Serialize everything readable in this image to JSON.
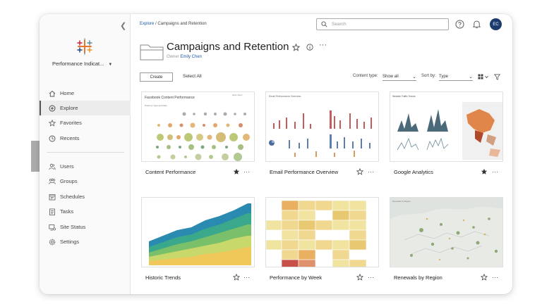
{
  "site": {
    "name": "Performance Indicat..."
  },
  "nav": [
    {
      "label": "Home",
      "icon": "home-icon"
    },
    {
      "label": "Explore",
      "icon": "explore-icon",
      "active": true
    },
    {
      "label": "Favorites",
      "icon": "star-icon"
    },
    {
      "label": "Recents",
      "icon": "clock-icon"
    },
    {
      "label": "Users",
      "icon": "users-icon"
    },
    {
      "label": "Groups",
      "icon": "groups-icon"
    },
    {
      "label": "Schedules",
      "icon": "schedules-icon"
    },
    {
      "label": "Tasks",
      "icon": "tasks-icon"
    },
    {
      "label": "Site Status",
      "icon": "site-status-icon"
    },
    {
      "label": "Settings",
      "icon": "gear-icon"
    }
  ],
  "breadcrumb": {
    "root": "Explore",
    "separator": "/",
    "current": "Campaigns and Retention"
  },
  "search": {
    "placeholder": "Search"
  },
  "user": {
    "initials": "EC"
  },
  "project": {
    "title": "Campaigns and Retention",
    "owner_label": "Owner",
    "owner_name": "Emily Chen"
  },
  "toolbar": {
    "create_label": "Create",
    "select_all_label": "Select All",
    "content_type_label": "Content type:",
    "content_type_value": "Show all",
    "sort_label": "Sort by:",
    "sort_value": "Type"
  },
  "cards": [
    {
      "title": "Content Performance",
      "favorited": true,
      "thumb_title": "Facebook Content Performance",
      "thumb_subtitle": "Posts by Type and Date",
      "thumb_note": "Metric Select"
    },
    {
      "title": "Email Performance Overview",
      "favorited": false,
      "thumb_title": "Email Performance Overview"
    },
    {
      "title": "Google Analytics",
      "favorited": true,
      "thumb_title": "Website Traffic Trends"
    },
    {
      "title": "Historic Trends",
      "favorited": false
    },
    {
      "title": "Performance by Week",
      "favorited": false
    },
    {
      "title": "Renewals by Region",
      "favorited": false,
      "thumb_title": "Renewals by Region"
    }
  ],
  "colors": {
    "accent": "#1f5aa6",
    "avatar": "#1c3c6e",
    "star_filled": "#333333"
  }
}
